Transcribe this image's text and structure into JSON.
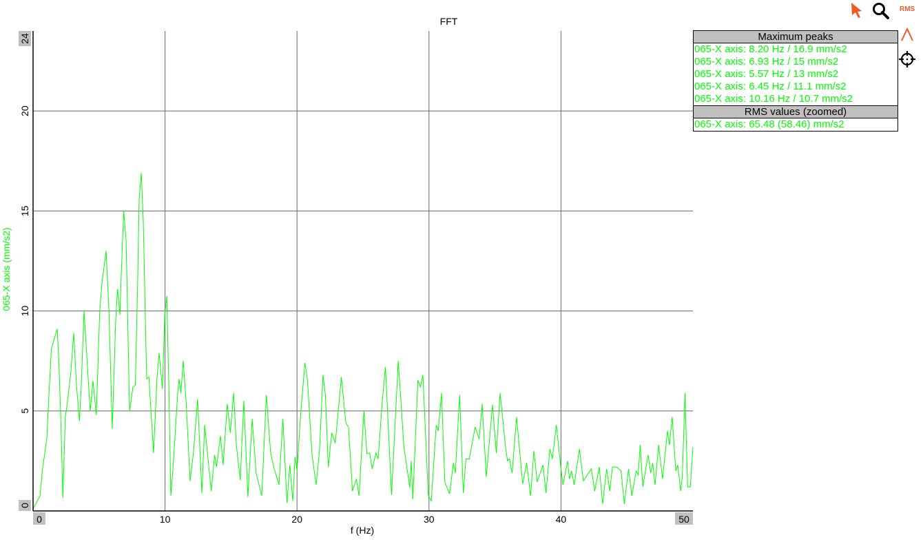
{
  "chart_data": {
    "type": "line",
    "title": "FFT",
    "xlabel": "f (Hz)",
    "ylabel": "065-X axis (mm/s2)",
    "xlim": [
      0,
      50
    ],
    "ylim": [
      0,
      24
    ],
    "xticks": [
      "0",
      "10",
      "20",
      "30",
      "40",
      "50"
    ],
    "yticks": [
      "0",
      "5",
      "10",
      "15",
      "20",
      "24"
    ],
    "grid": true,
    "series": [
      {
        "color": "#00ff00",
        "points": [
          [
            0,
            0.1
          ],
          [
            0.52,
            0.75
          ],
          [
            0.7,
            2.0
          ],
          [
            1.04,
            3.6
          ],
          [
            1.2,
            5.8
          ],
          [
            1.39,
            8.1
          ],
          [
            1.6,
            8.6
          ],
          [
            1.83,
            9.1
          ],
          [
            1.95,
            7.5
          ],
          [
            2.09,
            4.9
          ],
          [
            2.26,
            0.65
          ],
          [
            2.44,
            4.7
          ],
          [
            2.6,
            5.4
          ],
          [
            2.87,
            7.0
          ],
          [
            3.08,
            8.9
          ],
          [
            3.29,
            6.3
          ],
          [
            3.51,
            4.5
          ],
          [
            3.65,
            6.2
          ],
          [
            3.86,
            10.0
          ],
          [
            4.17,
            6.7
          ],
          [
            4.33,
            5.0
          ],
          [
            4.54,
            6.5
          ],
          [
            4.79,
            4.8
          ],
          [
            5.05,
            10.0
          ],
          [
            5.22,
            11.4
          ],
          [
            5.53,
            13.0
          ],
          [
            5.75,
            10.0
          ],
          [
            6.0,
            4.1
          ],
          [
            6.26,
            9.5
          ],
          [
            6.4,
            11.1
          ],
          [
            6.58,
            9.8
          ],
          [
            6.68,
            11.8
          ],
          [
            6.87,
            15.0
          ],
          [
            7.05,
            13.5
          ],
          [
            7.31,
            5.0
          ],
          [
            7.57,
            6.2
          ],
          [
            7.75,
            6.3
          ],
          [
            7.92,
            11.2
          ],
          [
            8.04,
            15.6
          ],
          [
            8.2,
            16.9
          ],
          [
            8.35,
            14.5
          ],
          [
            8.49,
            10.1
          ],
          [
            8.61,
            6.6
          ],
          [
            8.78,
            6.7
          ],
          [
            8.96,
            4.7
          ],
          [
            9.13,
            2.9
          ],
          [
            9.39,
            6.6
          ],
          [
            9.55,
            7.9
          ],
          [
            9.8,
            6.1
          ],
          [
            9.98,
            9.8
          ],
          [
            10.13,
            10.75
          ],
          [
            10.3,
            6.0
          ],
          [
            10.44,
            0.76
          ],
          [
            10.6,
            2.1
          ],
          [
            10.96,
            5.9
          ],
          [
            11.06,
            6.6
          ],
          [
            11.2,
            5.9
          ],
          [
            11.38,
            7.5
          ],
          [
            11.6,
            5.4
          ],
          [
            11.9,
            1.5
          ],
          [
            12.15,
            2.9
          ],
          [
            12.47,
            5.6
          ],
          [
            12.79,
            0.9
          ],
          [
            13.0,
            4.3
          ],
          [
            13.5,
            1.0
          ],
          [
            13.76,
            2.8
          ],
          [
            13.9,
            2.2
          ],
          [
            14.2,
            3.75
          ],
          [
            14.4,
            2.3
          ],
          [
            14.72,
            5.35
          ],
          [
            14.95,
            3.9
          ],
          [
            15.2,
            5.9
          ],
          [
            15.4,
            3.3
          ],
          [
            15.7,
            1.55
          ],
          [
            15.97,
            5.5
          ],
          [
            16.28,
            0.7
          ],
          [
            16.6,
            4.6
          ],
          [
            16.9,
            1.9
          ],
          [
            17.33,
            0.76
          ],
          [
            17.68,
            5.8
          ],
          [
            18.0,
            2.9
          ],
          [
            18.27,
            2.1
          ],
          [
            18.63,
            1.3
          ],
          [
            18.93,
            4.6
          ],
          [
            19.24,
            0.4
          ],
          [
            19.45,
            2.3
          ],
          [
            19.68,
            0.5
          ],
          [
            19.85,
            2.7
          ],
          [
            20.0,
            2.0
          ],
          [
            20.28,
            4.9
          ],
          [
            20.6,
            7.4
          ],
          [
            20.8,
            6.5
          ],
          [
            21.14,
            2.8
          ],
          [
            21.45,
            1.3
          ],
          [
            21.7,
            3.0
          ],
          [
            21.97,
            6.8
          ],
          [
            22.15,
            5.8
          ],
          [
            22.37,
            2.2
          ],
          [
            22.63,
            3.9
          ],
          [
            22.9,
            3.4
          ],
          [
            23.36,
            6.7
          ],
          [
            23.7,
            4.4
          ],
          [
            23.9,
            4.2
          ],
          [
            24.2,
            1.0
          ],
          [
            24.5,
            1.6
          ],
          [
            24.7,
            0.75
          ],
          [
            25.07,
            5.0
          ],
          [
            25.3,
            2.85
          ],
          [
            25.5,
            2.9
          ],
          [
            25.7,
            2.1
          ],
          [
            25.98,
            2.9
          ],
          [
            26.15,
            2.6
          ],
          [
            26.46,
            5.5
          ],
          [
            26.7,
            7.2
          ],
          [
            27.16,
            0.8
          ],
          [
            27.67,
            7.5
          ],
          [
            28.1,
            3.2
          ],
          [
            28.55,
            1.15
          ],
          [
            28.65,
            2.5
          ],
          [
            28.78,
            0.6
          ],
          [
            29.16,
            6.55
          ],
          [
            29.35,
            6.2
          ],
          [
            29.54,
            6.8
          ],
          [
            29.94,
            0.8
          ],
          [
            30.17,
            0.5
          ],
          [
            30.55,
            4.3
          ],
          [
            30.7,
            4.0
          ],
          [
            30.95,
            5.9
          ],
          [
            31.2,
            1.45
          ],
          [
            31.56,
            0.85
          ],
          [
            31.85,
            2.4
          ],
          [
            32.0,
            1.9
          ],
          [
            32.32,
            5.8
          ],
          [
            32.6,
            0.9
          ],
          [
            32.8,
            2.6
          ],
          [
            33.05,
            2.6
          ],
          [
            33.5,
            4.2
          ],
          [
            33.8,
            3.6
          ],
          [
            34.03,
            5.35
          ],
          [
            34.34,
            1.7
          ],
          [
            34.81,
            5.3
          ],
          [
            35.1,
            2.9
          ],
          [
            35.39,
            5.9
          ],
          [
            35.8,
            3.2
          ],
          [
            35.95,
            2.5
          ],
          [
            36.1,
            2.6
          ],
          [
            36.3,
            1.9
          ],
          [
            36.64,
            4.7
          ],
          [
            37.1,
            1.35
          ],
          [
            37.4,
            2.4
          ],
          [
            37.7,
            0.75
          ],
          [
            37.95,
            3.0
          ],
          [
            38.2,
            1.45
          ],
          [
            38.64,
            2.3
          ],
          [
            38.87,
            0.9
          ],
          [
            39.16,
            3.1
          ],
          [
            39.35,
            2.6
          ],
          [
            39.65,
            4.3
          ],
          [
            39.93,
            2.5
          ],
          [
            40.15,
            1.3
          ],
          [
            40.5,
            2.5
          ],
          [
            40.65,
            1.6
          ],
          [
            40.8,
            2.0
          ],
          [
            41.0,
            1.3
          ],
          [
            41.4,
            3.1
          ],
          [
            41.7,
            1.5
          ],
          [
            42.0,
            1.8
          ],
          [
            42.3,
            2.1
          ],
          [
            42.56,
            1.0
          ],
          [
            42.9,
            2.2
          ],
          [
            43.16,
            0.35
          ],
          [
            43.46,
            2.1
          ],
          [
            43.7,
            1.0
          ],
          [
            43.9,
            2.2
          ],
          [
            44.2,
            2.2
          ],
          [
            44.55,
            2.0
          ],
          [
            44.8,
            0.35
          ],
          [
            45.12,
            2.1
          ],
          [
            45.37,
            0.75
          ],
          [
            45.7,
            2.0
          ],
          [
            45.85,
            1.8
          ],
          [
            46.0,
            3.3
          ],
          [
            46.2,
            1.2
          ],
          [
            46.6,
            2.8
          ],
          [
            46.8,
            1.9
          ],
          [
            46.95,
            2.4
          ],
          [
            47.13,
            1.3
          ],
          [
            47.4,
            3.3
          ],
          [
            47.7,
            1.6
          ],
          [
            48.07,
            4.0
          ],
          [
            48.22,
            3.3
          ],
          [
            48.43,
            4.7
          ],
          [
            48.7,
            2.0
          ],
          [
            48.85,
            2.3
          ],
          [
            49.07,
            1.0
          ],
          [
            49.2,
            1.8
          ],
          [
            49.4,
            5.9
          ],
          [
            49.6,
            1.2
          ],
          [
            49.8,
            1.2
          ],
          [
            50.0,
            3.2
          ]
        ]
      }
    ]
  },
  "legend": {
    "peaks_header": "Maximum peaks",
    "peaks": [
      "065-X axis: 8.20 Hz / 16.9 mm/s2",
      "065-X axis: 6.93 Hz / 15 mm/s2",
      "065-X axis: 5.57 Hz / 13 mm/s2",
      "065-X axis: 6.45 Hz / 11.1 mm/s2",
      "065-X axis: 10.16 Hz / 10.7 mm/s2"
    ],
    "rms_header": "RMS values (zoomed)",
    "rms": [
      "065-X axis: 65.48 (58.46) mm/s2"
    ]
  },
  "toolbar": {
    "rms_label": "RMS",
    "icons": [
      "pointer-icon",
      "zoom-icon",
      "rms-icon",
      "peak-icon",
      "crosshair-icon"
    ],
    "accent": "#f05a28"
  }
}
